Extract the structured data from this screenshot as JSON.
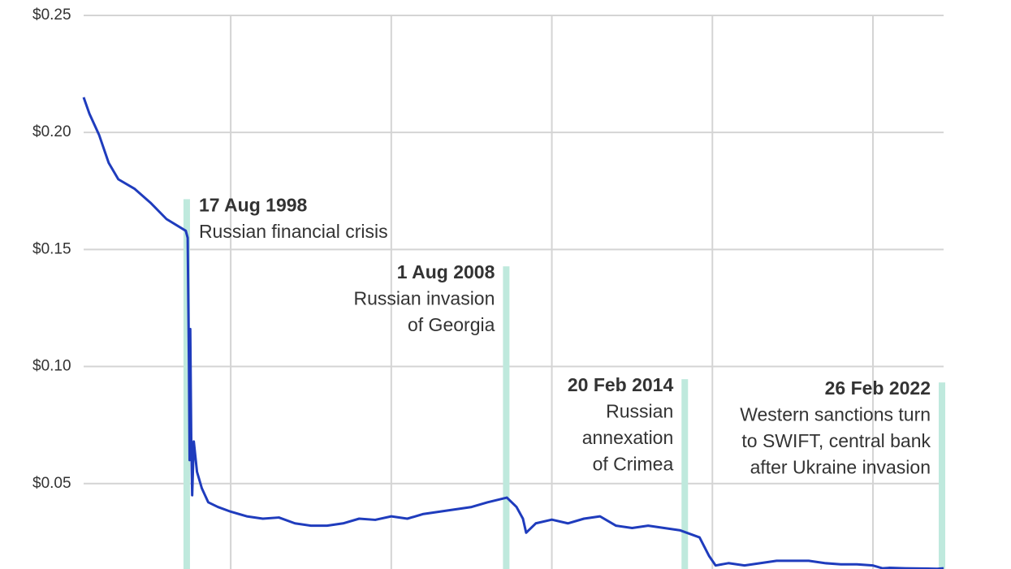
{
  "chart_data": {
    "type": "line",
    "xlim": [
      1995.42,
      2022.2
    ],
    "ylim": [
      0.0135,
      0.25
    ],
    "yticks": [
      {
        "value": 0.05,
        "label": "$0.05"
      },
      {
        "value": 0.1,
        "label": "$0.10"
      },
      {
        "value": 0.15,
        "label": "$0.15"
      },
      {
        "value": 0.2,
        "label": "$0.20"
      },
      {
        "value": 0.25,
        "label": "$0.25"
      }
    ],
    "xgrid": [
      2000,
      2005,
      2010,
      2015,
      2020
    ],
    "grid": true,
    "series": [
      {
        "color": "#1f3cbd",
        "x": [
          1995.42,
          1995.6,
          1995.9,
          1996.2,
          1996.5,
          1997.0,
          1997.5,
          1998.0,
          1998.6,
          1998.66,
          1998.7,
          1998.72,
          1998.74,
          1998.77,
          1998.8,
          1998.85,
          1998.95,
          1999.1,
          1999.3,
          1999.6,
          2000.0,
          2000.5,
          2001.0,
          2001.5,
          2002.0,
          2002.5,
          2003.0,
          2003.5,
          2004.0,
          2004.5,
          2005.0,
          2005.5,
          2006.0,
          2006.5,
          2007.0,
          2007.5,
          2008.0,
          2008.6,
          2008.9,
          2009.1,
          2009.2,
          2009.5,
          2010.0,
          2010.5,
          2011.0,
          2011.5,
          2012.0,
          2012.5,
          2013.0,
          2013.5,
          2014.0,
          2014.2,
          2014.6,
          2014.9,
          2015.1,
          2015.5,
          2016.0,
          2016.5,
          2017.0,
          2017.5,
          2018.0,
          2018.5,
          2019.0,
          2019.5,
          2020.0,
          2020.3,
          2020.5,
          2021.0,
          2021.5,
          2022.0,
          2022.2
        ],
        "values": [
          0.215,
          0.208,
          0.199,
          0.187,
          0.18,
          0.176,
          0.17,
          0.163,
          0.158,
          0.155,
          0.1,
          0.06,
          0.116,
          0.07,
          0.045,
          0.068,
          0.055,
          0.048,
          0.042,
          0.04,
          0.038,
          0.036,
          0.035,
          0.0355,
          0.033,
          0.032,
          0.032,
          0.033,
          0.035,
          0.0345,
          0.036,
          0.035,
          0.037,
          0.038,
          0.039,
          0.04,
          0.042,
          0.044,
          0.04,
          0.035,
          0.029,
          0.033,
          0.0346,
          0.033,
          0.035,
          0.036,
          0.032,
          0.031,
          0.032,
          0.031,
          0.03,
          0.029,
          0.027,
          0.019,
          0.015,
          0.016,
          0.015,
          0.016,
          0.017,
          0.017,
          0.017,
          0.016,
          0.0155,
          0.0155,
          0.015,
          0.0138,
          0.014,
          0.0138,
          0.0137,
          0.0136,
          0.0138
        ]
      }
    ],
    "annotations": [
      {
        "x": 1998.63,
        "y": 0.1715,
        "date": "17 Aug 1998",
        "lines": [
          "Russian financial crisis"
        ]
      },
      {
        "x": 2008.58,
        "y": 0.1428,
        "date": "1 Aug 2008",
        "lines": [
          "Russian invasion",
          "of Georgia"
        ]
      },
      {
        "x": 2014.14,
        "y": 0.0946,
        "date": "20 Feb 2014",
        "lines": [
          "Russian",
          "annexation",
          "of Crimea"
        ]
      },
      {
        "x": 2022.15,
        "y": 0.0932,
        "date": "26 Feb 2022",
        "lines": [
          "Western sanctions turn",
          "to SWIFT, central bank",
          "after Ukraine invasion"
        ]
      }
    ]
  }
}
